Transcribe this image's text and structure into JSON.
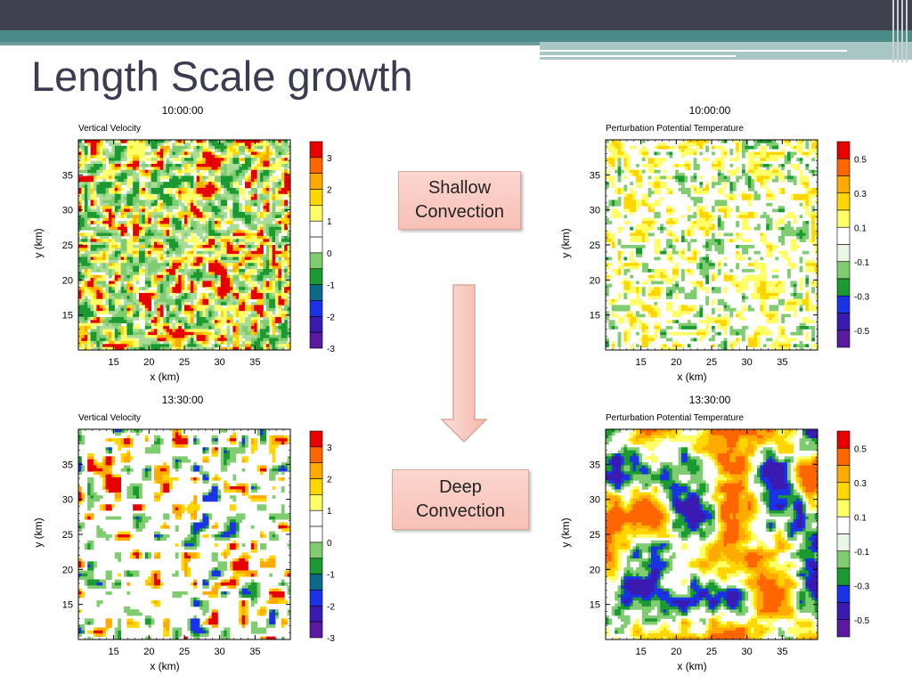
{
  "slide": {
    "title": "Length Scale growth"
  },
  "callouts": {
    "shallow": "Shallow\nConvection",
    "deep": "Deep\nConvection"
  },
  "panels": [
    {
      "time": "10:00:00",
      "variable": "Vertical Velocity",
      "regime": "shallow",
      "field": "w",
      "xlabel": "x (km)",
      "ylabel": "y (km)",
      "x_ticks": [
        "15",
        "20",
        "25",
        "30",
        "35"
      ],
      "y_ticks": [
        "35",
        "30",
        "25",
        "20",
        "15"
      ],
      "colorbar_labels": [
        "3",
        "2",
        "1",
        "0",
        "-1",
        "-2",
        "-3"
      ]
    },
    {
      "time": "10:00:00",
      "variable": "Perturbation Potential Temperature",
      "regime": "shallow",
      "field": "theta",
      "xlabel": "x (km)",
      "ylabel": "y (km)",
      "x_ticks": [
        "15",
        "20",
        "25",
        "30",
        "35"
      ],
      "y_ticks": [
        "35",
        "30",
        "25",
        "20",
        "15"
      ],
      "colorbar_labels": [
        "0.5",
        "0.3",
        "0.1",
        "-0.1",
        "-0.3",
        "-0.5"
      ]
    },
    {
      "time": "13:30:00",
      "variable": "Vertical Velocity",
      "regime": "deep",
      "field": "w",
      "xlabel": "x (km)",
      "ylabel": "y (km)",
      "x_ticks": [
        "15",
        "20",
        "25",
        "30",
        "35"
      ],
      "y_ticks": [
        "35",
        "30",
        "25",
        "20",
        "15"
      ],
      "colorbar_labels": [
        "3",
        "2",
        "1",
        "0",
        "-1",
        "-2",
        "-3"
      ]
    },
    {
      "time": "13:30:00",
      "variable": "Perturbation Potential Temperature",
      "regime": "deep",
      "field": "theta",
      "xlabel": "x (km)",
      "ylabel": "y (km)",
      "x_ticks": [
        "15",
        "20",
        "25",
        "30",
        "35"
      ],
      "y_ticks": [
        "35",
        "30",
        "25",
        "20",
        "15"
      ],
      "colorbar_labels": [
        "0.5",
        "0.3",
        "0.1",
        "-0.1",
        "-0.3",
        "-0.5"
      ]
    }
  ],
  "colors": {
    "w": [
      "#e60000",
      "#ff6600",
      "#ffaa00",
      "#ffd600",
      "#ffff66",
      "#ffffff",
      "#ffffff",
      "#80cc70",
      "#1a9a30",
      "#0a6a8a",
      "#1a33e6",
      "#3a1ab0",
      "#5a1aa0"
    ],
    "theta": [
      "#e60000",
      "#ff6600",
      "#ffaa00",
      "#ffd600",
      "#ffff66",
      "#ffffff",
      "#eaf7e6",
      "#80cc70",
      "#1a9a30",
      "#1a33e6",
      "#3a1ab0",
      "#5a1aa0"
    ],
    "title_color": "#3c3c50"
  }
}
